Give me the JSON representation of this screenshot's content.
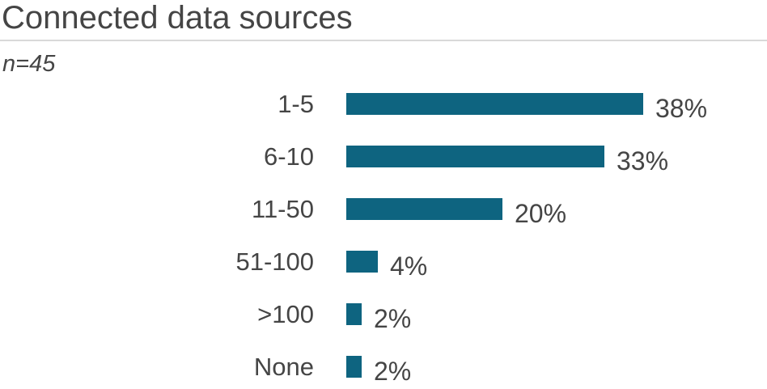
{
  "header": {
    "title": "Connected data sources",
    "subtitle": "n=45"
  },
  "colors": {
    "bar": "#0e6480",
    "text": "#454545",
    "divider": "#d9d9d9"
  },
  "chart_data": {
    "type": "bar",
    "orientation": "horizontal",
    "title": "Connected data sources",
    "subtitle": "n=45",
    "categories": [
      "1-5",
      "6-10",
      "11-50",
      "51-100",
      ">100",
      "None"
    ],
    "values": [
      38,
      33,
      20,
      4,
      2,
      2
    ],
    "value_suffix": "%",
    "xlabel": "",
    "ylabel": "",
    "xlim": [
      0,
      38
    ],
    "grid": false,
    "legend": false,
    "data_labels": "outside-end",
    "bar_color": "#0e6480"
  }
}
